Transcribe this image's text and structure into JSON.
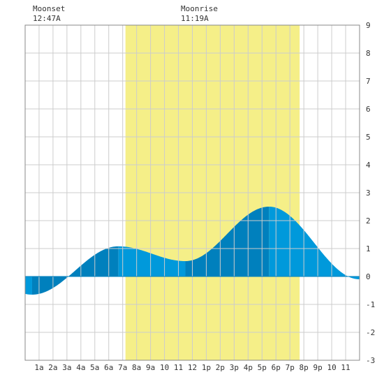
{
  "chart_data": {
    "type": "area",
    "title": "",
    "xlabel": "",
    "ylabel": "",
    "xlim": [
      0,
      24
    ],
    "ylim": [
      -3,
      9
    ],
    "grid": true,
    "x_tick_labels": [
      "1a",
      "2a",
      "3a",
      "4a",
      "5a",
      "6a",
      "7a",
      "8a",
      "9a",
      "10",
      "11",
      "12",
      "1p",
      "2p",
      "3p",
      "4p",
      "5p",
      "6p",
      "7p",
      "8p",
      "9p",
      "10",
      "11"
    ],
    "y_tick_labels": [
      "-3",
      "-2",
      "-1",
      "0",
      "1",
      "2",
      "3",
      "4",
      "5",
      "6",
      "7",
      "8",
      "9"
    ],
    "daylight": {
      "start": 7.2,
      "end": 19.7
    },
    "annotations": [
      {
        "name": "moonset",
        "label": "Moonset",
        "time": "12:47A",
        "hour": 0.78
      },
      {
        "name": "moonrise",
        "label": "Moonrise",
        "time": "11:19A",
        "hour": 11.32
      }
    ],
    "tide_extremes": [
      {
        "hour": 0.5,
        "height": -0.65
      },
      {
        "hour": 6.7,
        "height": 1.08
      },
      {
        "hour": 11.5,
        "height": 0.55
      },
      {
        "hour": 17.5,
        "height": 2.5
      },
      {
        "hour": 24.0,
        "height": -0.1
      }
    ],
    "band_boundaries": [
      0.5,
      6.7,
      11.5,
      17.5
    ],
    "colors": {
      "daylight": "#f5ef88",
      "tide_light": "#0099db",
      "tide_dark": "#0080bd",
      "grid": "#cccccc",
      "border": "#888888",
      "background": "#ffffff"
    }
  }
}
